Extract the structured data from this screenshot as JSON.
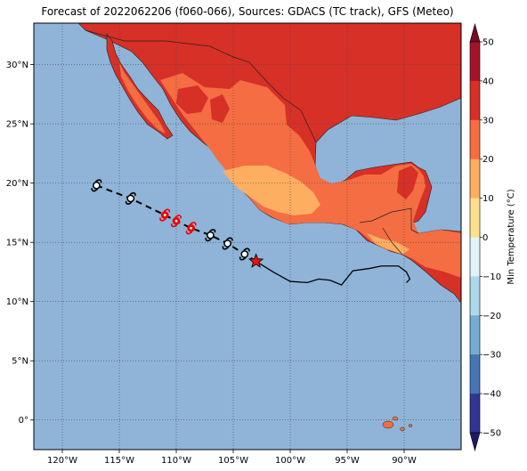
{
  "title": "Forecast of 2022062206 (f060-066), Sources: GDACS (TC track), GFS (Meteo)",
  "map": {
    "lon_range": [
      -122.5,
      -85.0
    ],
    "lat_range": [
      -2.5,
      33.5
    ],
    "lon_ticks": [
      -120,
      -115,
      -110,
      -105,
      -100,
      -95,
      -90
    ],
    "lon_tick_labels": [
      "120°W",
      "115°W",
      "110°W",
      "105°W",
      "100°W",
      "95°W",
      "90°W"
    ],
    "lat_ticks": [
      0,
      5,
      10,
      15,
      20,
      25,
      30
    ],
    "lat_tick_labels": [
      "0°",
      "5°N",
      "10°N",
      "15°N",
      "20°N",
      "25°N",
      "30°N"
    ],
    "ocean_color": "#8fb4d8",
    "grid": true
  },
  "colorbar": {
    "label": "Min Temperature (°C)",
    "ticks": [
      50,
      40,
      30,
      20,
      10,
      0,
      -10,
      -20,
      -30,
      -40,
      -50
    ],
    "tick_labels": [
      "50",
      "40",
      "30",
      "20",
      "10",
      "0",
      "−10",
      "−20",
      "−30",
      "−40",
      "−50"
    ],
    "colors": [
      "#7a0a23",
      "#a3142a",
      "#d73027",
      "#f46d43",
      "#fdae61",
      "#fee090",
      "#e0f3f8",
      "#abd9e9",
      "#74add1",
      "#4575b4",
      "#313695",
      "#1d1b6b"
    ]
  },
  "land_colors": {
    "hot": "#d73027",
    "warm": "#f46d43",
    "mild": "#fdae61"
  },
  "storm_track": {
    "current_position": {
      "lon": -103.0,
      "lat": 13.4
    },
    "past_track": [
      {
        "lon": -103.0,
        "lat": 13.4
      },
      {
        "lon": -101.5,
        "lat": 12.5
      },
      {
        "lon": -100.0,
        "lat": 11.7
      },
      {
        "lon": -98.5,
        "lat": 11.6
      },
      {
        "lon": -97.5,
        "lat": 11.9
      },
      {
        "lon": -96.5,
        "lat": 11.8
      },
      {
        "lon": -95.5,
        "lat": 11.4
      },
      {
        "lon": -94.5,
        "lat": 12.6
      },
      {
        "lon": -93.0,
        "lat": 12.8
      },
      {
        "lon": -92.0,
        "lat": 13.0
      },
      {
        "lon": -90.5,
        "lat": 13.0
      },
      {
        "lon": -89.8,
        "lat": 12.5
      },
      {
        "lon": -89.5,
        "lat": 11.9
      },
      {
        "lon": -89.8,
        "lat": 11.6
      }
    ],
    "forecast_positions": [
      {
        "lon": -104.0,
        "lat": 14.0,
        "intensity": "storm"
      },
      {
        "lon": -105.5,
        "lat": 14.9,
        "intensity": "storm"
      },
      {
        "lon": -107.0,
        "lat": 15.6,
        "intensity": "storm"
      },
      {
        "lon": -108.7,
        "lat": 16.2,
        "intensity": "hurricane"
      },
      {
        "lon": -110.0,
        "lat": 16.8,
        "intensity": "hurricane"
      },
      {
        "lon": -111.0,
        "lat": 17.3,
        "intensity": "hurricane"
      },
      {
        "lon": -114.0,
        "lat": 18.7,
        "intensity": "storm"
      },
      {
        "lon": -117.0,
        "lat": 19.8,
        "intensity": "storm"
      }
    ],
    "colors": {
      "storm": "#000000",
      "hurricane": "#ee0000",
      "star": "#ee1111"
    }
  }
}
